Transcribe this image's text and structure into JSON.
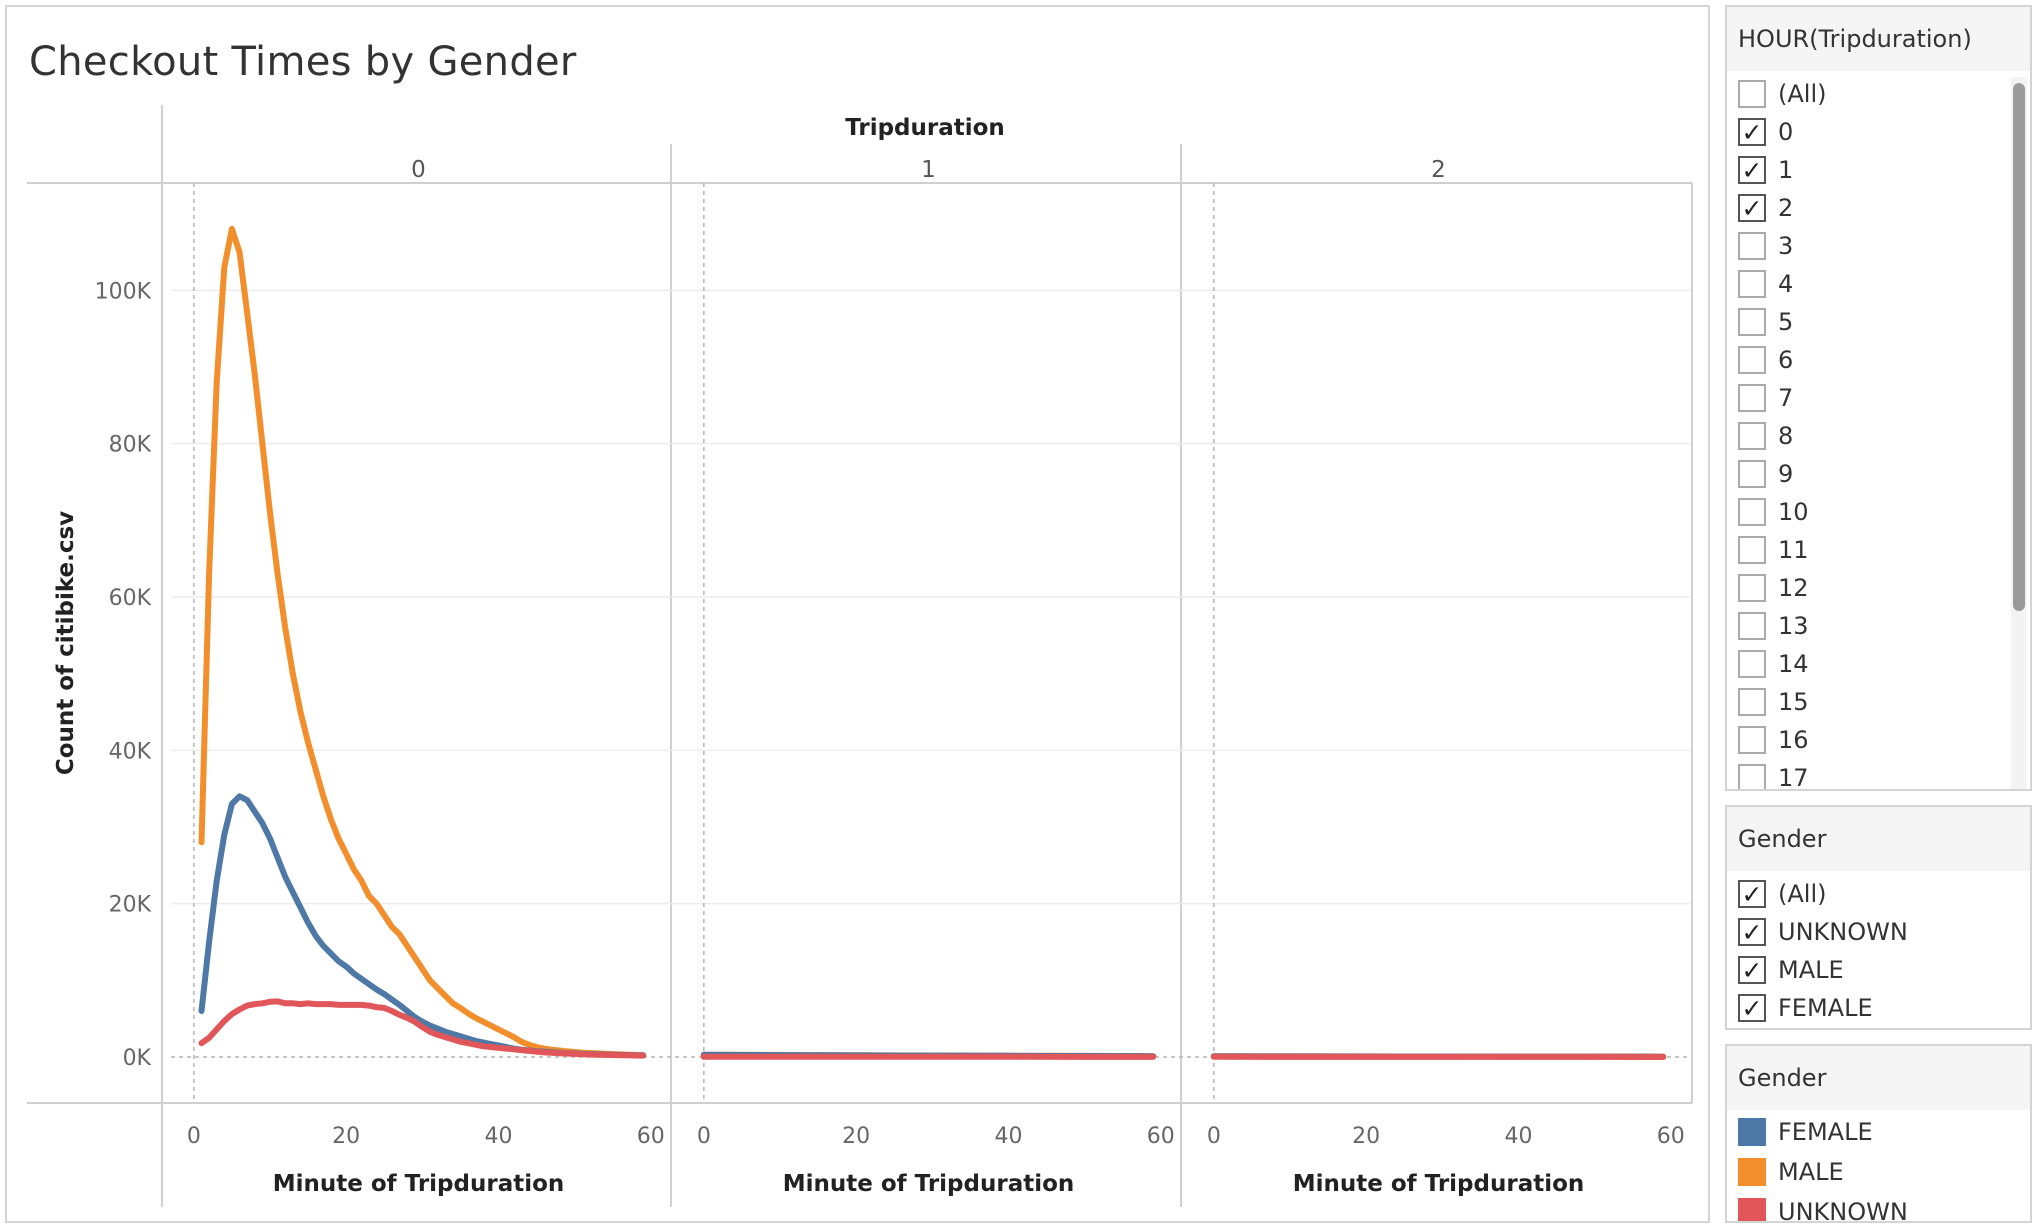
{
  "title": "Checkout Times by Gender",
  "filters": {
    "hour_filter": {
      "title": "HOUR(Tripduration)",
      "items": [
        {
          "label": "(All)",
          "checked": false
        },
        {
          "label": "0",
          "checked": true
        },
        {
          "label": "1",
          "checked": true
        },
        {
          "label": "2",
          "checked": true
        },
        {
          "label": "3",
          "checked": false
        },
        {
          "label": "4",
          "checked": false
        },
        {
          "label": "5",
          "checked": false
        },
        {
          "label": "6",
          "checked": false
        },
        {
          "label": "7",
          "checked": false
        },
        {
          "label": "8",
          "checked": false
        },
        {
          "label": "9",
          "checked": false
        },
        {
          "label": "10",
          "checked": false
        },
        {
          "label": "11",
          "checked": false
        },
        {
          "label": "12",
          "checked": false
        },
        {
          "label": "13",
          "checked": false
        },
        {
          "label": "14",
          "checked": false
        },
        {
          "label": "15",
          "checked": false
        },
        {
          "label": "16",
          "checked": false
        },
        {
          "label": "17",
          "checked": false
        }
      ]
    },
    "gender_filter": {
      "title": "Gender",
      "items": [
        {
          "label": "(All)",
          "checked": true
        },
        {
          "label": "UNKNOWN",
          "checked": true
        },
        {
          "label": "MALE",
          "checked": true
        },
        {
          "label": "FEMALE",
          "checked": true
        }
      ]
    }
  },
  "legend": {
    "title": "Gender",
    "items": [
      {
        "label": "FEMALE",
        "color": "#4e79a7"
      },
      {
        "label": "MALE",
        "color": "#f28e2b"
      },
      {
        "label": "UNKNOWN",
        "color": "#e15759"
      }
    ]
  },
  "chart_data": {
    "type": "line",
    "title": "Checkout Times by Gender",
    "column_header": "Tripduration",
    "facets": [
      "0",
      "1",
      "2"
    ],
    "xlabel": "Minute of Tripduration",
    "ylabel": "Count of citibike.csv",
    "xlim": [
      -3,
      62
    ],
    "xticks": [
      0,
      20,
      40,
      60
    ],
    "xtick_labels": [
      "0",
      "20",
      "40",
      "60"
    ],
    "ylim": [
      -6000,
      114000
    ],
    "yticks": [
      0,
      20000,
      40000,
      60000,
      80000,
      100000
    ],
    "ytick_labels": [
      "0K",
      "20K",
      "40K",
      "60K",
      "80K",
      "100K"
    ],
    "grid": true,
    "legend_position": "right",
    "series": [
      {
        "name": "MALE",
        "color": "#f28e2b",
        "panels": [
          {
            "x": [
              1,
              2,
              3,
              4,
              5,
              6,
              7,
              8,
              9,
              10,
              11,
              12,
              13,
              14,
              15,
              16,
              17,
              18,
              19,
              20,
              21,
              22,
              23,
              24,
              25,
              26,
              27,
              28,
              29,
              30,
              31,
              32,
              33,
              34,
              35,
              36,
              37,
              38,
              39,
              40,
              41,
              42,
              43,
              44,
              45,
              46,
              47,
              48,
              49,
              50,
              51,
              52,
              53,
              54,
              55,
              56,
              57,
              58,
              59
            ],
            "y": [
              28000,
              63000,
              88000,
              103000,
              108000,
              105000,
              97000,
              89000,
              80000,
              71000,
              63000,
              56000,
              50000,
              45000,
              41000,
              37500,
              34000,
              31000,
              28500,
              26500,
              24500,
              23000,
              21000,
              20000,
              18500,
              17000,
              16000,
              14500,
              13000,
              11500,
              10000,
              9000,
              8000,
              7000,
              6400,
              5700,
              5100,
              4600,
              4100,
              3600,
              3100,
              2600,
              2000,
              1600,
              1300,
              1100,
              950,
              850,
              750,
              650,
              580,
              520,
              470,
              420,
              380,
              340,
              300,
              270,
              240
            ]
          },
          {
            "x": [
              0,
              10,
              20,
              30,
              40,
              50,
              59
            ],
            "y": [
              300,
              260,
              220,
              190,
              160,
              140,
              110
            ]
          },
          {
            "x": [
              0,
              10,
              20,
              30,
              40,
              50,
              59
            ],
            "y": [
              100,
              90,
              80,
              70,
              65,
              60,
              50
            ]
          }
        ]
      },
      {
        "name": "FEMALE",
        "color": "#4e79a7",
        "panels": [
          {
            "x": [
              1,
              2,
              3,
              4,
              5,
              6,
              7,
              8,
              9,
              10,
              11,
              12,
              13,
              14,
              15,
              16,
              17,
              18,
              19,
              20,
              21,
              22,
              23,
              24,
              25,
              26,
              27,
              28,
              29,
              30,
              31,
              32,
              33,
              34,
              35,
              36,
              37,
              38,
              39,
              40,
              41,
              42,
              43,
              44,
              45,
              46,
              47,
              48,
              49,
              50,
              51,
              52,
              53,
              54,
              55,
              56,
              57,
              58,
              59
            ],
            "y": [
              6000,
              15000,
              23000,
              29000,
              33000,
              34000,
              33500,
              32000,
              30500,
              28500,
              26000,
              23500,
              21500,
              19500,
              17500,
              15800,
              14500,
              13500,
              12500,
              11800,
              10900,
              10200,
              9500,
              8800,
              8200,
              7500,
              6800,
              6000,
              5200,
              4600,
              4100,
              3700,
              3300,
              3000,
              2700,
              2400,
              2100,
              1900,
              1700,
              1500,
              1300,
              1100,
              950,
              850,
              760,
              680,
              610,
              550,
              500,
              450,
              410,
              380,
              350,
              320,
              300,
              280,
              260,
              240,
              220
            ]
          },
          {
            "x": [
              0,
              10,
              20,
              30,
              40,
              50,
              59
            ],
            "y": [
              300,
              250,
              210,
              180,
              150,
              130,
              100
            ]
          },
          {
            "x": [
              0,
              10,
              20,
              30,
              40,
              50,
              59
            ],
            "y": [
              90,
              80,
              70,
              60,
              55,
              50,
              40
            ]
          }
        ]
      },
      {
        "name": "UNKNOWN",
        "color": "#e15759",
        "panels": [
          {
            "x": [
              1,
              2,
              3,
              4,
              5,
              6,
              7,
              8,
              9,
              10,
              11,
              12,
              13,
              14,
              15,
              16,
              17,
              18,
              19,
              20,
              21,
              22,
              23,
              24,
              25,
              26,
              27,
              28,
              29,
              30,
              31,
              32,
              33,
              34,
              35,
              36,
              37,
              38,
              39,
              40,
              41,
              42,
              43,
              44,
              45,
              46,
              47,
              48,
              49,
              50,
              51,
              52,
              53,
              54,
              55,
              56,
              57,
              58,
              59
            ],
            "y": [
              1800,
              2500,
              3600,
              4700,
              5600,
              6200,
              6700,
              6900,
              7000,
              7200,
              7250,
              7000,
              7000,
              6900,
              7000,
              6900,
              6900,
              6900,
              6800,
              6800,
              6800,
              6800,
              6700,
              6500,
              6400,
              6000,
              5500,
              5100,
              4600,
              3900,
              3300,
              2900,
              2600,
              2300,
              2000,
              1800,
              1600,
              1400,
              1300,
              1200,
              1100,
              1000,
              900,
              800,
              700,
              600,
              550,
              500,
              450,
              400,
              360,
              330,
              300,
              280,
              260,
              240,
              220,
              200,
              180
            ]
          },
          {
            "x": [
              0,
              10,
              20,
              30,
              40,
              50,
              59
            ],
            "y": [
              40,
              35,
              30,
              25,
              20,
              18,
              15
            ]
          },
          {
            "x": [
              0,
              10,
              20,
              30,
              40,
              50,
              59
            ],
            "y": [
              20,
              18,
              15,
              12,
              10,
              8,
              6
            ]
          }
        ]
      }
    ]
  }
}
